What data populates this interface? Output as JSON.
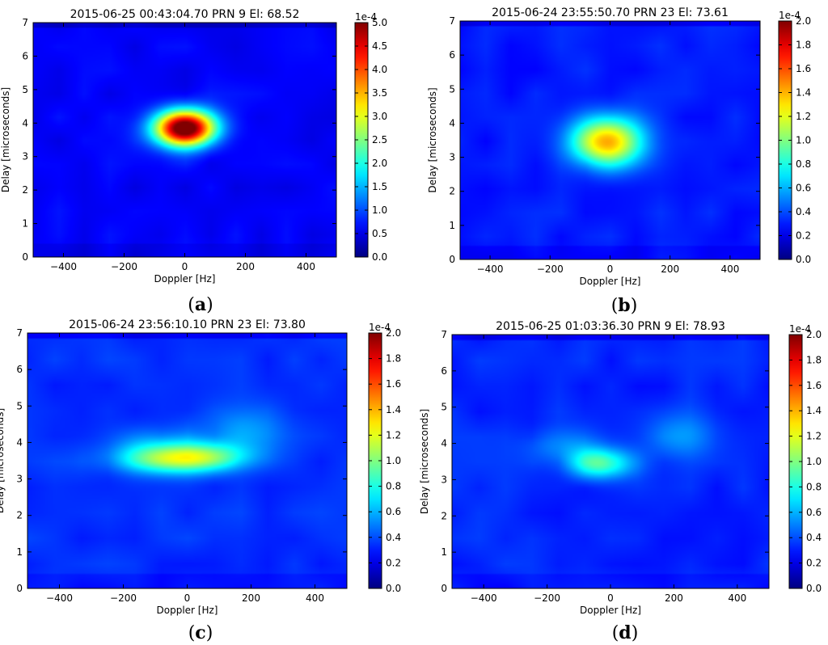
{
  "chart_data": [
    {
      "id": "a",
      "type": "heatmap",
      "title": "2015-06-25 00:43:04.70 PRN 9 El: 68.52",
      "xlabel": "Doppler [Hz]",
      "ylabel": "Delay [microseconds]",
      "xlim": [
        -500,
        500
      ],
      "ylim": [
        0,
        7
      ],
      "xticks": [
        -400,
        -200,
        0,
        200,
        400
      ],
      "yticks": [
        0,
        1,
        2,
        3,
        4,
        5,
        6,
        7
      ],
      "colorbar": {
        "min": 0.0,
        "max": 5.0,
        "scale_label": "1e-4",
        "tick_labels": [
          "0.0",
          "0.5",
          "1.0",
          "1.5",
          "2.0",
          "2.5",
          "3.0",
          "3.5",
          "4.0",
          "4.5",
          "5.0"
        ]
      },
      "colormap": "jet",
      "background_level": 0.12,
      "peaks": [
        {
          "doppler": 0,
          "delay": 3.85,
          "value": 1.0,
          "sx": 70,
          "sy": 0.38
        }
      ],
      "caption": "a"
    },
    {
      "id": "b",
      "type": "heatmap",
      "title": "2015-06-24 23:55:50.70 PRN 23 El: 73.61",
      "xlabel": "Doppler [Hz]",
      "ylabel": "Delay [microseconds]",
      "xlim": [
        -500,
        500
      ],
      "ylim": [
        0,
        7
      ],
      "xticks": [
        -400,
        -200,
        0,
        200,
        400
      ],
      "yticks": [
        0,
        1,
        2,
        3,
        4,
        5,
        6,
        7
      ],
      "colorbar": {
        "min": 0.0,
        "max": 2.0,
        "scale_label": "1e-4",
        "tick_labels": [
          "0.0",
          "0.2",
          "0.4",
          "0.6",
          "0.8",
          "1.0",
          "1.2",
          "1.4",
          "1.6",
          "1.8",
          "2.0"
        ]
      },
      "colormap": "jet",
      "background_level": 0.15,
      "peaks": [
        {
          "doppler": -10,
          "delay": 3.45,
          "value": 0.55,
          "sx": 85,
          "sy": 0.5
        }
      ],
      "caption": "b"
    },
    {
      "id": "c",
      "type": "heatmap",
      "title": "2015-06-24 23:56:10.10 PRN 23 El: 73.80",
      "xlabel": "Doppler [Hz]",
      "ylabel": "Delay [microseconds]",
      "xlim": [
        -500,
        500
      ],
      "ylim": [
        0,
        7
      ],
      "xticks": [
        -400,
        -200,
        0,
        200,
        400
      ],
      "yticks": [
        0,
        1,
        2,
        3,
        4,
        5,
        6,
        7
      ],
      "colorbar": {
        "min": 0.0,
        "max": 2.0,
        "scale_label": "1e-4",
        "tick_labels": [
          "0.0",
          "0.2",
          "0.4",
          "0.6",
          "0.8",
          "1.0",
          "1.2",
          "1.4",
          "1.6",
          "1.8",
          "2.0"
        ]
      },
      "colormap": "jet",
      "background_level": 0.17,
      "peaks": [
        {
          "doppler": -80,
          "delay": 3.55,
          "value": 0.28,
          "sx": 110,
          "sy": 0.28
        },
        {
          "doppler": 60,
          "delay": 3.6,
          "value": 0.26,
          "sx": 100,
          "sy": 0.28
        },
        {
          "doppler": 170,
          "delay": 4.3,
          "value": 0.1,
          "sx": 90,
          "sy": 0.45
        },
        {
          "doppler": -120,
          "delay": 4.05,
          "value": 0.08,
          "sx": 90,
          "sy": 0.3
        }
      ],
      "caption": "c"
    },
    {
      "id": "d",
      "type": "heatmap",
      "title": "2015-06-25 01:03:36.30 PRN 9 El: 78.93",
      "xlabel": "Doppler [Hz]",
      "ylabel": "Delay [microseconds]",
      "xlim": [
        -500,
        500
      ],
      "ylim": [
        0,
        7
      ],
      "xticks": [
        -400,
        -200,
        0,
        200,
        400
      ],
      "yticks": [
        0,
        1,
        2,
        3,
        4,
        5,
        6,
        7
      ],
      "colorbar": {
        "min": 0.0,
        "max": 2.0,
        "scale_label": "1e-4",
        "tick_labels": [
          "0.0",
          "0.2",
          "0.4",
          "0.6",
          "0.8",
          "1.0",
          "1.2",
          "1.4",
          "1.6",
          "1.8",
          "2.0"
        ]
      },
      "colormap": "jet",
      "background_level": 0.16,
      "peaks": [
        {
          "doppler": -30,
          "delay": 3.45,
          "value": 0.3,
          "sx": 70,
          "sy": 0.3
        },
        {
          "doppler": -160,
          "delay": 3.95,
          "value": 0.1,
          "sx": 80,
          "sy": 0.35
        },
        {
          "doppler": 230,
          "delay": 4.2,
          "value": 0.1,
          "sx": 80,
          "sy": 0.45
        }
      ],
      "caption": "d"
    }
  ]
}
